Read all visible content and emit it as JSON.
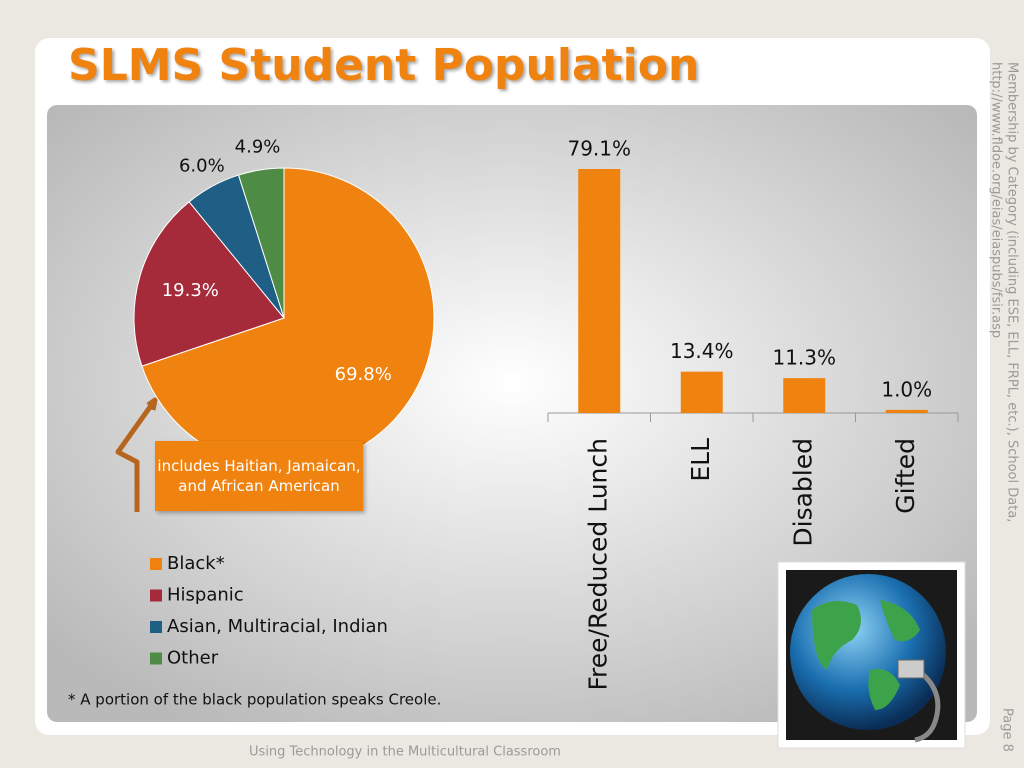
{
  "title": "SLMS Student Population",
  "chart_data": [
    {
      "type": "pie",
      "categories": [
        "Black*",
        "Hispanic",
        "Asian, Multiracial, Indian",
        "Other"
      ],
      "values": [
        69.8,
        19.3,
        6.0,
        4.9
      ],
      "value_labels": [
        "69.8%",
        "19.3%",
        "6.0%",
        "4.9%"
      ],
      "colors": [
        "#f0820f",
        "#a52a3a",
        "#1f5f85",
        "#4e8c45"
      ],
      "legend": "bottom"
    },
    {
      "type": "bar",
      "categories": [
        "Free/Reduced Lunch",
        "ELL",
        "Disabled",
        "Gifted"
      ],
      "values": [
        79.1,
        13.4,
        11.3,
        1.0
      ],
      "value_labels": [
        "79.1%",
        "13.4%",
        "11.3%",
        "1.0%"
      ],
      "color": "#f0820f"
    }
  ],
  "callout": "includes Haitian, Jamaican, and African American",
  "footnote": "* A portion of the black population speaks Creole.",
  "source": [
    "Membership by Category (including ESE, ELL, FRPL, etc.), School Data,",
    "http://www.fldoe.org/eias/eiaspubs/fsir.asp"
  ],
  "footer": "Using Technology in the Multicultural Classroom",
  "page": "Page 8"
}
